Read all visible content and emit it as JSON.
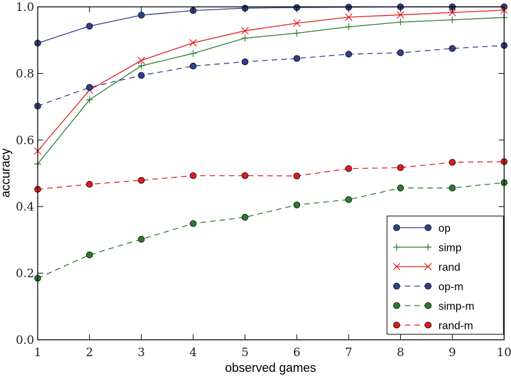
{
  "chart_data": {
    "type": "line",
    "title": "",
    "xlabel": "observed games",
    "ylabel": "accuracy",
    "xlim": [
      1,
      10
    ],
    "ylim": [
      0.0,
      1.0
    ],
    "xticks": [
      "1",
      "2",
      "3",
      "4",
      "5",
      "6",
      "7",
      "8",
      "9",
      "10"
    ],
    "yticks": [
      "0.0",
      "0.2",
      "0.4",
      "0.6",
      "0.8",
      "1.0"
    ],
    "grid": false,
    "legend_placement": "bottom-right",
    "x": [
      1,
      2,
      3,
      4,
      5,
      6,
      7,
      8,
      9,
      10
    ],
    "series": [
      {
        "name": "op",
        "color": "#313f8f",
        "style": "solid",
        "marker": "circle",
        "values": [
          0.891,
          0.942,
          0.975,
          0.989,
          0.996,
          0.998,
          0.999,
          1.0,
          1.0,
          1.0
        ]
      },
      {
        "name": "simp",
        "color": "#2a7d2e",
        "style": "solid",
        "marker": "plus",
        "values": [
          0.528,
          0.721,
          0.823,
          0.86,
          0.906,
          0.921,
          0.94,
          0.954,
          0.961,
          0.968
        ]
      },
      {
        "name": "rand",
        "color": "#e3191f",
        "style": "solid",
        "marker": "x",
        "values": [
          0.567,
          0.75,
          0.839,
          0.892,
          0.928,
          0.951,
          0.969,
          0.976,
          0.983,
          0.99
        ]
      },
      {
        "name": "op-m",
        "color": "#313f8f",
        "style": "dashed",
        "marker": "circle",
        "values": [
          0.702,
          0.758,
          0.794,
          0.822,
          0.835,
          0.845,
          0.858,
          0.862,
          0.875,
          0.884
        ]
      },
      {
        "name": "simp-m",
        "color": "#2a7d2e",
        "style": "dashed",
        "marker": "circle",
        "values": [
          0.185,
          0.255,
          0.302,
          0.349,
          0.368,
          0.405,
          0.421,
          0.456,
          0.456,
          0.472
        ]
      },
      {
        "name": "rand-m",
        "color": "#e3191f",
        "style": "dashed",
        "marker": "circle",
        "values": [
          0.452,
          0.467,
          0.479,
          0.493,
          0.493,
          0.492,
          0.514,
          0.517,
          0.533,
          0.535
        ]
      }
    ]
  }
}
